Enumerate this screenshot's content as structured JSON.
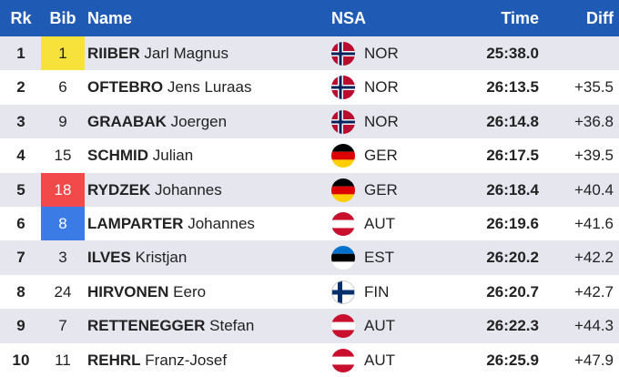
{
  "header": {
    "rk": "Rk",
    "bib": "Bib",
    "name": "Name",
    "nsa": "NSA",
    "time": "Time",
    "diff": "Diff"
  },
  "colors": {
    "header_bg": "#1f5ab4",
    "alt_row": "#e6e6ef",
    "bib_yellow": "#f7e23c",
    "bib_red": "#f24a4a",
    "bib_blue": "#3a7be6"
  },
  "rows": [
    {
      "rk": "1",
      "bib": "1",
      "bib_color": "yellow",
      "surname": "RIIBER",
      "given": "Jarl Magnus",
      "flag": "norway-flag-icon",
      "nsa": "NOR",
      "time": "25:38.0",
      "diff": ""
    },
    {
      "rk": "2",
      "bib": "6",
      "bib_color": "",
      "surname": "OFTEBRO",
      "given": "Jens Luraas",
      "flag": "norway-flag-icon",
      "nsa": "NOR",
      "time": "26:13.5",
      "diff": "+35.5"
    },
    {
      "rk": "3",
      "bib": "9",
      "bib_color": "",
      "surname": "GRAABAK",
      "given": "Joergen",
      "flag": "norway-flag-icon",
      "nsa": "NOR",
      "time": "26:14.8",
      "diff": "+36.8"
    },
    {
      "rk": "4",
      "bib": "15",
      "bib_color": "",
      "surname": "SCHMID",
      "given": "Julian",
      "flag": "germany-flag-icon",
      "nsa": "GER",
      "time": "26:17.5",
      "diff": "+39.5"
    },
    {
      "rk": "5",
      "bib": "18",
      "bib_color": "red",
      "surname": "RYDZEK",
      "given": "Johannes",
      "flag": "germany-flag-icon",
      "nsa": "GER",
      "time": "26:18.4",
      "diff": "+40.4"
    },
    {
      "rk": "6",
      "bib": "8",
      "bib_color": "blue",
      "surname": "LAMPARTER",
      "given": "Johannes",
      "flag": "austria-flag-icon",
      "nsa": "AUT",
      "time": "26:19.6",
      "diff": "+41.6"
    },
    {
      "rk": "7",
      "bib": "3",
      "bib_color": "",
      "surname": "ILVES",
      "given": "Kristjan",
      "flag": "estonia-flag-icon",
      "nsa": "EST",
      "time": "26:20.2",
      "diff": "+42.2"
    },
    {
      "rk": "8",
      "bib": "24",
      "bib_color": "",
      "surname": "HIRVONEN",
      "given": "Eero",
      "flag": "finland-flag-icon",
      "nsa": "FIN",
      "time": "26:20.7",
      "diff": "+42.7"
    },
    {
      "rk": "9",
      "bib": "7",
      "bib_color": "",
      "surname": "RETTENEGGER",
      "given": "Stefan",
      "flag": "austria-flag-icon",
      "nsa": "AUT",
      "time": "26:22.3",
      "diff": "+44.3"
    },
    {
      "rk": "10",
      "bib": "11",
      "bib_color": "",
      "surname": "REHRL",
      "given": "Franz-Josef",
      "flag": "austria-flag-icon",
      "nsa": "AUT",
      "time": "26:25.9",
      "diff": "+47.9"
    }
  ]
}
